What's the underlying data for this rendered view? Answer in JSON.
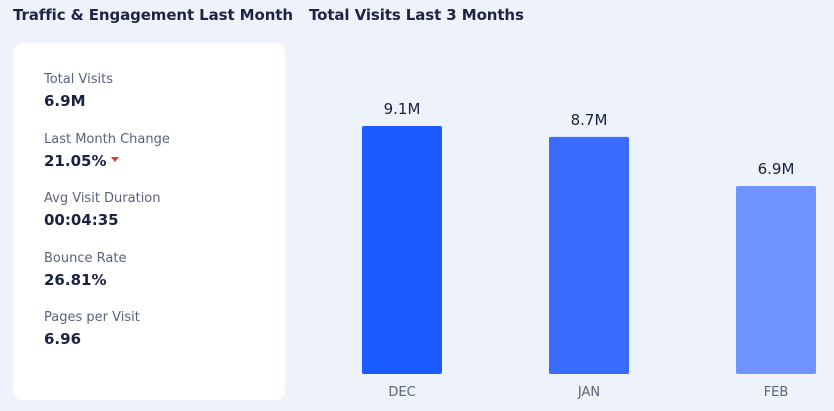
{
  "header": {
    "left_title": "Traffic & Engagement Last Month",
    "right_title": "Total Visits Last 3 Months"
  },
  "metrics": [
    {
      "label": "Total Visits",
      "value": "6.9M"
    },
    {
      "label": "Last Month Change",
      "value": "21.05%",
      "trend_icon": "caret-down-icon",
      "trend_color": "#e53935"
    },
    {
      "label": "Avg Visit Duration",
      "value": "00:04:35"
    },
    {
      "label": "Bounce Rate",
      "value": "26.81%"
    },
    {
      "label": "Pages per Visit",
      "value": "6.96"
    }
  ],
  "colors": {
    "background": "#eef2fa",
    "card": "#ffffff",
    "bar_dec": "#1a5cff",
    "bar_jan": "#3a6cff",
    "bar_feb": "#6e95ff"
  },
  "chart_data": {
    "type": "bar",
    "categories": [
      "DEC",
      "JAN",
      "FEB"
    ],
    "values": [
      9.1,
      8.7,
      6.9
    ],
    "value_labels": [
      "9.1M",
      "8.7M",
      "6.9M"
    ],
    "colors": [
      "#1a5cff",
      "#3a6cff",
      "#6e95ff"
    ],
    "title": "Total Visits Last 3 Months",
    "xlabel": "",
    "ylabel": "",
    "ylim": [
      0,
      9.1
    ],
    "grid": false
  }
}
